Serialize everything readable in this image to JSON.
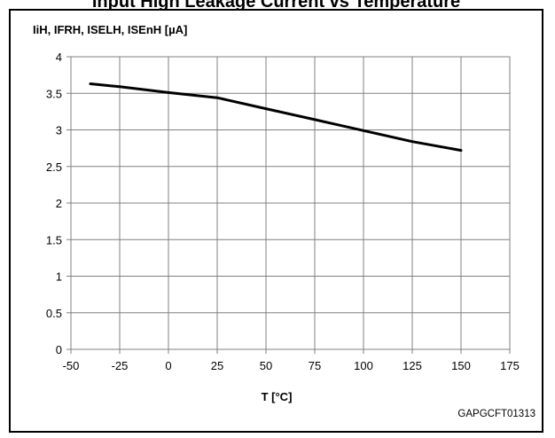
{
  "figure": {
    "title": "Input High Leakage Current vs Temperature",
    "code": "GAPGCFT01313"
  },
  "chart_data": {
    "type": "line",
    "title": "",
    "xlabel": "T [°C]",
    "ylabel": "IiH, IFRH, ISELH, ISEnH [µA]",
    "xlim": [
      -50,
      175
    ],
    "ylim": [
      0,
      4
    ],
    "xticks": [
      "-50",
      "-25",
      "0",
      "25",
      "50",
      "75",
      "100",
      "125",
      "150",
      "175"
    ],
    "yticks": [
      "0",
      "0.5",
      "1",
      "1.5",
      "2",
      "2.5",
      "3",
      "3.5",
      "4"
    ],
    "grid": true,
    "series": [
      {
        "color": "#000000",
        "x": [
          -40,
          -25,
          0,
          25,
          50,
          75,
          100,
          125,
          150
        ],
        "y": [
          3.63,
          3.59,
          3.51,
          3.44,
          3.29,
          3.14,
          2.99,
          2.84,
          2.72
        ]
      }
    ]
  }
}
